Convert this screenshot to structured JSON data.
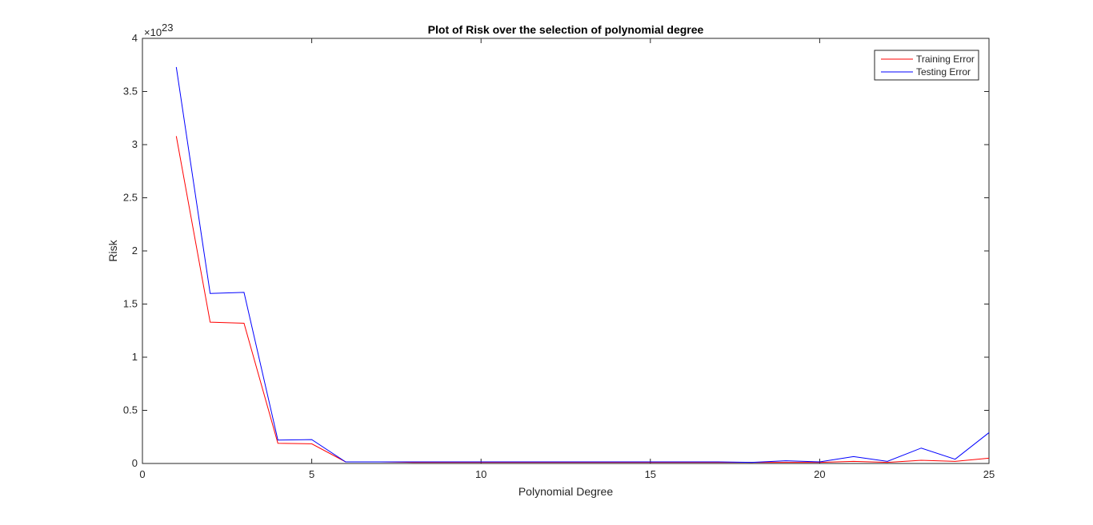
{
  "chart_data": {
    "type": "line",
    "title": "Plot of Risk over the selection of polynomial degree",
    "xlabel": "Polynomial Degree",
    "ylabel": "Risk",
    "y_exponent_label": "×10",
    "y_exponent_power": "23",
    "xlim": [
      0,
      25
    ],
    "ylim": [
      0,
      4
    ],
    "x_ticks": [
      0,
      5,
      10,
      15,
      20,
      25
    ],
    "x_tick_labels": [
      "0",
      "5",
      "10",
      "15",
      "20",
      "25"
    ],
    "y_ticks": [
      0,
      0.5,
      1,
      1.5,
      2,
      2.5,
      3,
      3.5,
      4
    ],
    "y_tick_labels": [
      "0",
      "0.5",
      "1",
      "1.5",
      "2",
      "2.5",
      "3",
      "3.5",
      "4"
    ],
    "grid": false,
    "legend_position": "top-right",
    "x": [
      1,
      2,
      3,
      4,
      5,
      6,
      7,
      8,
      9,
      10,
      11,
      12,
      13,
      14,
      15,
      16,
      17,
      18,
      19,
      20,
      21,
      22,
      23,
      24,
      25
    ],
    "series": [
      {
        "name": "Training Error",
        "color": "#ff0000",
        "values": [
          3.08,
          1.33,
          1.32,
          0.19,
          0.185,
          0.015,
          0.015,
          0.01,
          0.01,
          0.01,
          0.01,
          0.01,
          0.01,
          0.01,
          0.01,
          0.01,
          0.01,
          0.01,
          0.01,
          0.01,
          0.02,
          0.01,
          0.03,
          0.02,
          0.05
        ]
      },
      {
        "name": "Testing Error",
        "color": "#0000ff",
        "values": [
          3.73,
          1.6,
          1.61,
          0.22,
          0.225,
          0.015,
          0.015,
          0.015,
          0.015,
          0.015,
          0.015,
          0.015,
          0.015,
          0.015,
          0.015,
          0.015,
          0.015,
          0.01,
          0.025,
          0.015,
          0.065,
          0.02,
          0.145,
          0.04,
          0.29
        ]
      }
    ]
  }
}
